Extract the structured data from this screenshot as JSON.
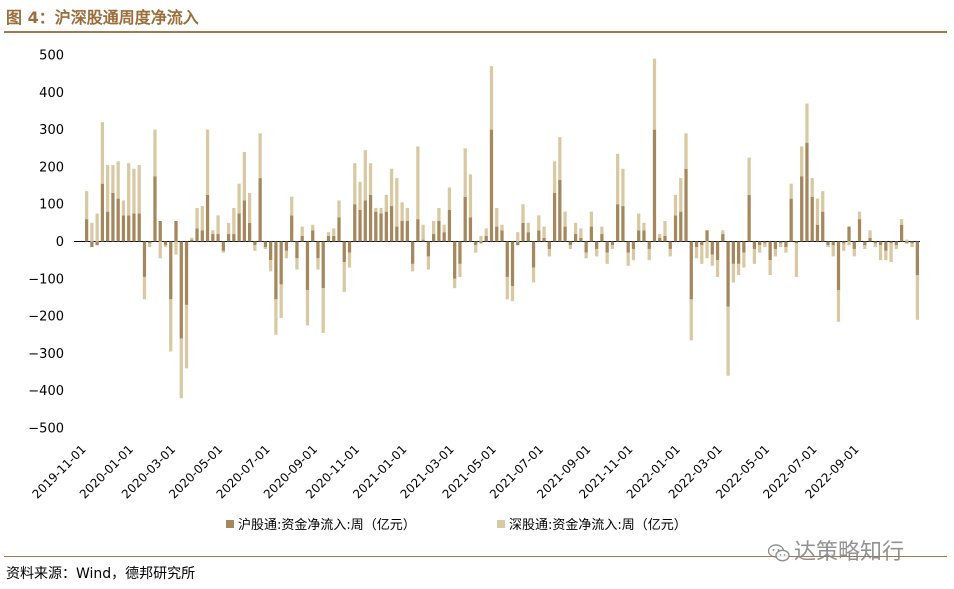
{
  "figure": {
    "title": "图 4：沪深股通周度净流入",
    "source": "资料来源：Wind，德邦研究所",
    "watermark": "达策略知行"
  },
  "chart_data": {
    "type": "bar",
    "stacked": true,
    "ylim": [
      -500,
      500
    ],
    "yticks": [
      500,
      400,
      300,
      200,
      100,
      0,
      -100,
      -200,
      -300,
      -400,
      -500
    ],
    "xticks": [
      "2019-11-01",
      "2020-01-01",
      "2020-03-01",
      "2020-05-01",
      "2020-07-01",
      "2020-09-01",
      "2020-11-01",
      "2021-01-01",
      "2021-03-01",
      "2021-05-01",
      "2021-07-01",
      "2021-09-01",
      "2021-11-01",
      "2022-01-01",
      "2022-03-01",
      "2022-05-01",
      "2022-07-01",
      "2022-09-01"
    ],
    "xtick_positions": [
      0,
      9,
      17,
      26,
      35,
      44,
      52,
      61,
      70,
      78,
      87,
      96,
      104,
      113,
      121,
      130,
      139,
      147
    ],
    "grid": false,
    "legend_position": "bottom",
    "colors": {
      "hgt": "#a5875d",
      "sgt": "#d8c9a3"
    },
    "series": [
      {
        "name": "沪股通:资金净流入:周（亿元）",
        "key": "hgt",
        "values": [
          60,
          -15,
          -10,
          155,
          80,
          130,
          115,
          70,
          70,
          75,
          75,
          -95,
          -5,
          175,
          55,
          -10,
          -155,
          55,
          -260,
          -170,
          5,
          35,
          30,
          125,
          20,
          20,
          -25,
          20,
          20,
          75,
          110,
          50,
          -10,
          170,
          -15,
          -50,
          -155,
          -115,
          -25,
          70,
          -45,
          15,
          -130,
          30,
          -45,
          -125,
          15,
          15,
          65,
          -55,
          -30,
          100,
          85,
          110,
          125,
          80,
          75,
          80,
          95,
          40,
          55,
          55,
          -60,
          60,
          5,
          -40,
          20,
          55,
          25,
          85,
          -100,
          -60,
          120,
          65,
          -10,
          -5,
          15,
          300,
          40,
          30,
          -95,
          -120,
          -10,
          50,
          25,
          -70,
          30,
          10,
          -20,
          130,
          165,
          40,
          -10,
          20,
          10,
          -30,
          40,
          -20,
          20,
          -30,
          -10,
          100,
          95,
          -30,
          -20,
          30,
          30,
          -20,
          300,
          10,
          15,
          -20,
          70,
          80,
          195,
          -155,
          -15,
          -10,
          30,
          -35,
          -50,
          20,
          -175,
          -60,
          -60,
          -30,
          125,
          -20,
          -10,
          -5,
          -50,
          -20,
          -5,
          -15,
          115,
          -5,
          175,
          265,
          120,
          45,
          80,
          -10,
          -10,
          -130,
          -5,
          40,
          -20,
          60,
          -10,
          10,
          -5,
          -10,
          -25,
          -5,
          -10,
          45,
          -5,
          -5,
          -90
        ],
        "sgt_values_note": ""
      },
      {
        "name": "深股通:资金净流入:周（亿元）",
        "key": "sgt",
        "values": [
          75,
          50,
          75,
          165,
          125,
          75,
          100,
          40,
          140,
          120,
          130,
          -60,
          -10,
          125,
          -45,
          -5,
          -140,
          -35,
          -160,
          -170,
          5,
          55,
          65,
          175,
          10,
          50,
          -5,
          30,
          70,
          80,
          130,
          80,
          -15,
          120,
          -5,
          -30,
          -95,
          -90,
          -20,
          50,
          -30,
          25,
          -95,
          15,
          -30,
          -120,
          10,
          20,
          45,
          -80,
          -40,
          110,
          75,
          135,
          85,
          10,
          15,
          45,
          100,
          130,
          50,
          35,
          -20,
          195,
          40,
          -35,
          35,
          35,
          20,
          60,
          -25,
          -35,
          130,
          115,
          -20,
          15,
          20,
          170,
          50,
          15,
          -60,
          -40,
          25,
          50,
          25,
          -40,
          40,
          30,
          -20,
          85,
          115,
          40,
          -10,
          30,
          25,
          -15,
          40,
          -20,
          20,
          -30,
          -10,
          135,
          100,
          -35,
          -30,
          45,
          20,
          -30,
          190,
          10,
          40,
          -20,
          55,
          90,
          95,
          -110,
          -30,
          -50,
          -45,
          -30,
          -45,
          10,
          -185,
          -50,
          -30,
          -40,
          100,
          -40,
          -20,
          -10,
          -40,
          -20,
          -10,
          -15,
          40,
          -90,
          80,
          105,
          50,
          70,
          55,
          -5,
          -30,
          -85,
          -20,
          -10,
          -20,
          20,
          -10,
          20,
          -10,
          -40,
          -25,
          -50,
          -10,
          15,
          5,
          -10,
          -120
        ]
      }
    ]
  }
}
